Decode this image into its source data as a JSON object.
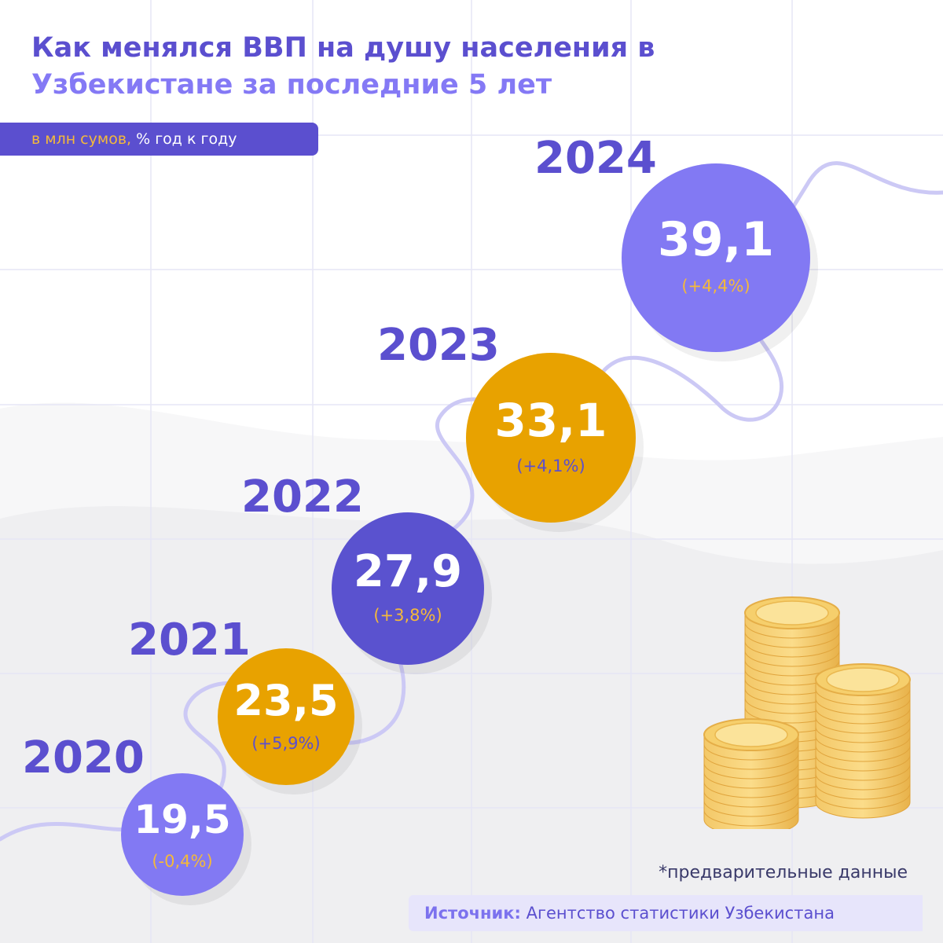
{
  "header": {
    "title_line1": "Как менялся ВВП на душу населения в",
    "title_line2": "Узбекистане за последние 5 лет",
    "units_part1": "в млн сумов,",
    "units_part2": "% год к году"
  },
  "chart_data": {
    "type": "scatter",
    "title": "Как менялся ВВП на душу населения в Узбекистане за последние 5 лет",
    "units": "в млн сумов, % год к году",
    "points": [
      {
        "year": "2020",
        "value": "19,5",
        "change": "(-0,4%)",
        "color": "#8279f3"
      },
      {
        "year": "2021",
        "value": "23,5",
        "change": "(+5,9%)",
        "color": "#e8a200"
      },
      {
        "year": "2022",
        "value": "27,9",
        "change": "(+3,8%)",
        "color": "#5a52cf"
      },
      {
        "year": "2023",
        "value": "33,1",
        "change": "(+4,1%)",
        "color": "#e8a200"
      },
      {
        "year": "2024",
        "value": "39,1",
        "change": "(+4,4%)",
        "color": "#8279f3"
      }
    ]
  },
  "colors": {
    "primary": "#5b4fcf",
    "light_violet": "#8279f3",
    "gold": "#e8a200",
    "change_on_violet": "#f4b93a",
    "change_on_gold": "#5b4fcf"
  },
  "footer": {
    "note": "*предварительные данные",
    "source_label": "Источник:",
    "source_text": " Агентство статистики Узбекистана"
  },
  "decor": {
    "illustration": "gold-coin-stacks"
  }
}
